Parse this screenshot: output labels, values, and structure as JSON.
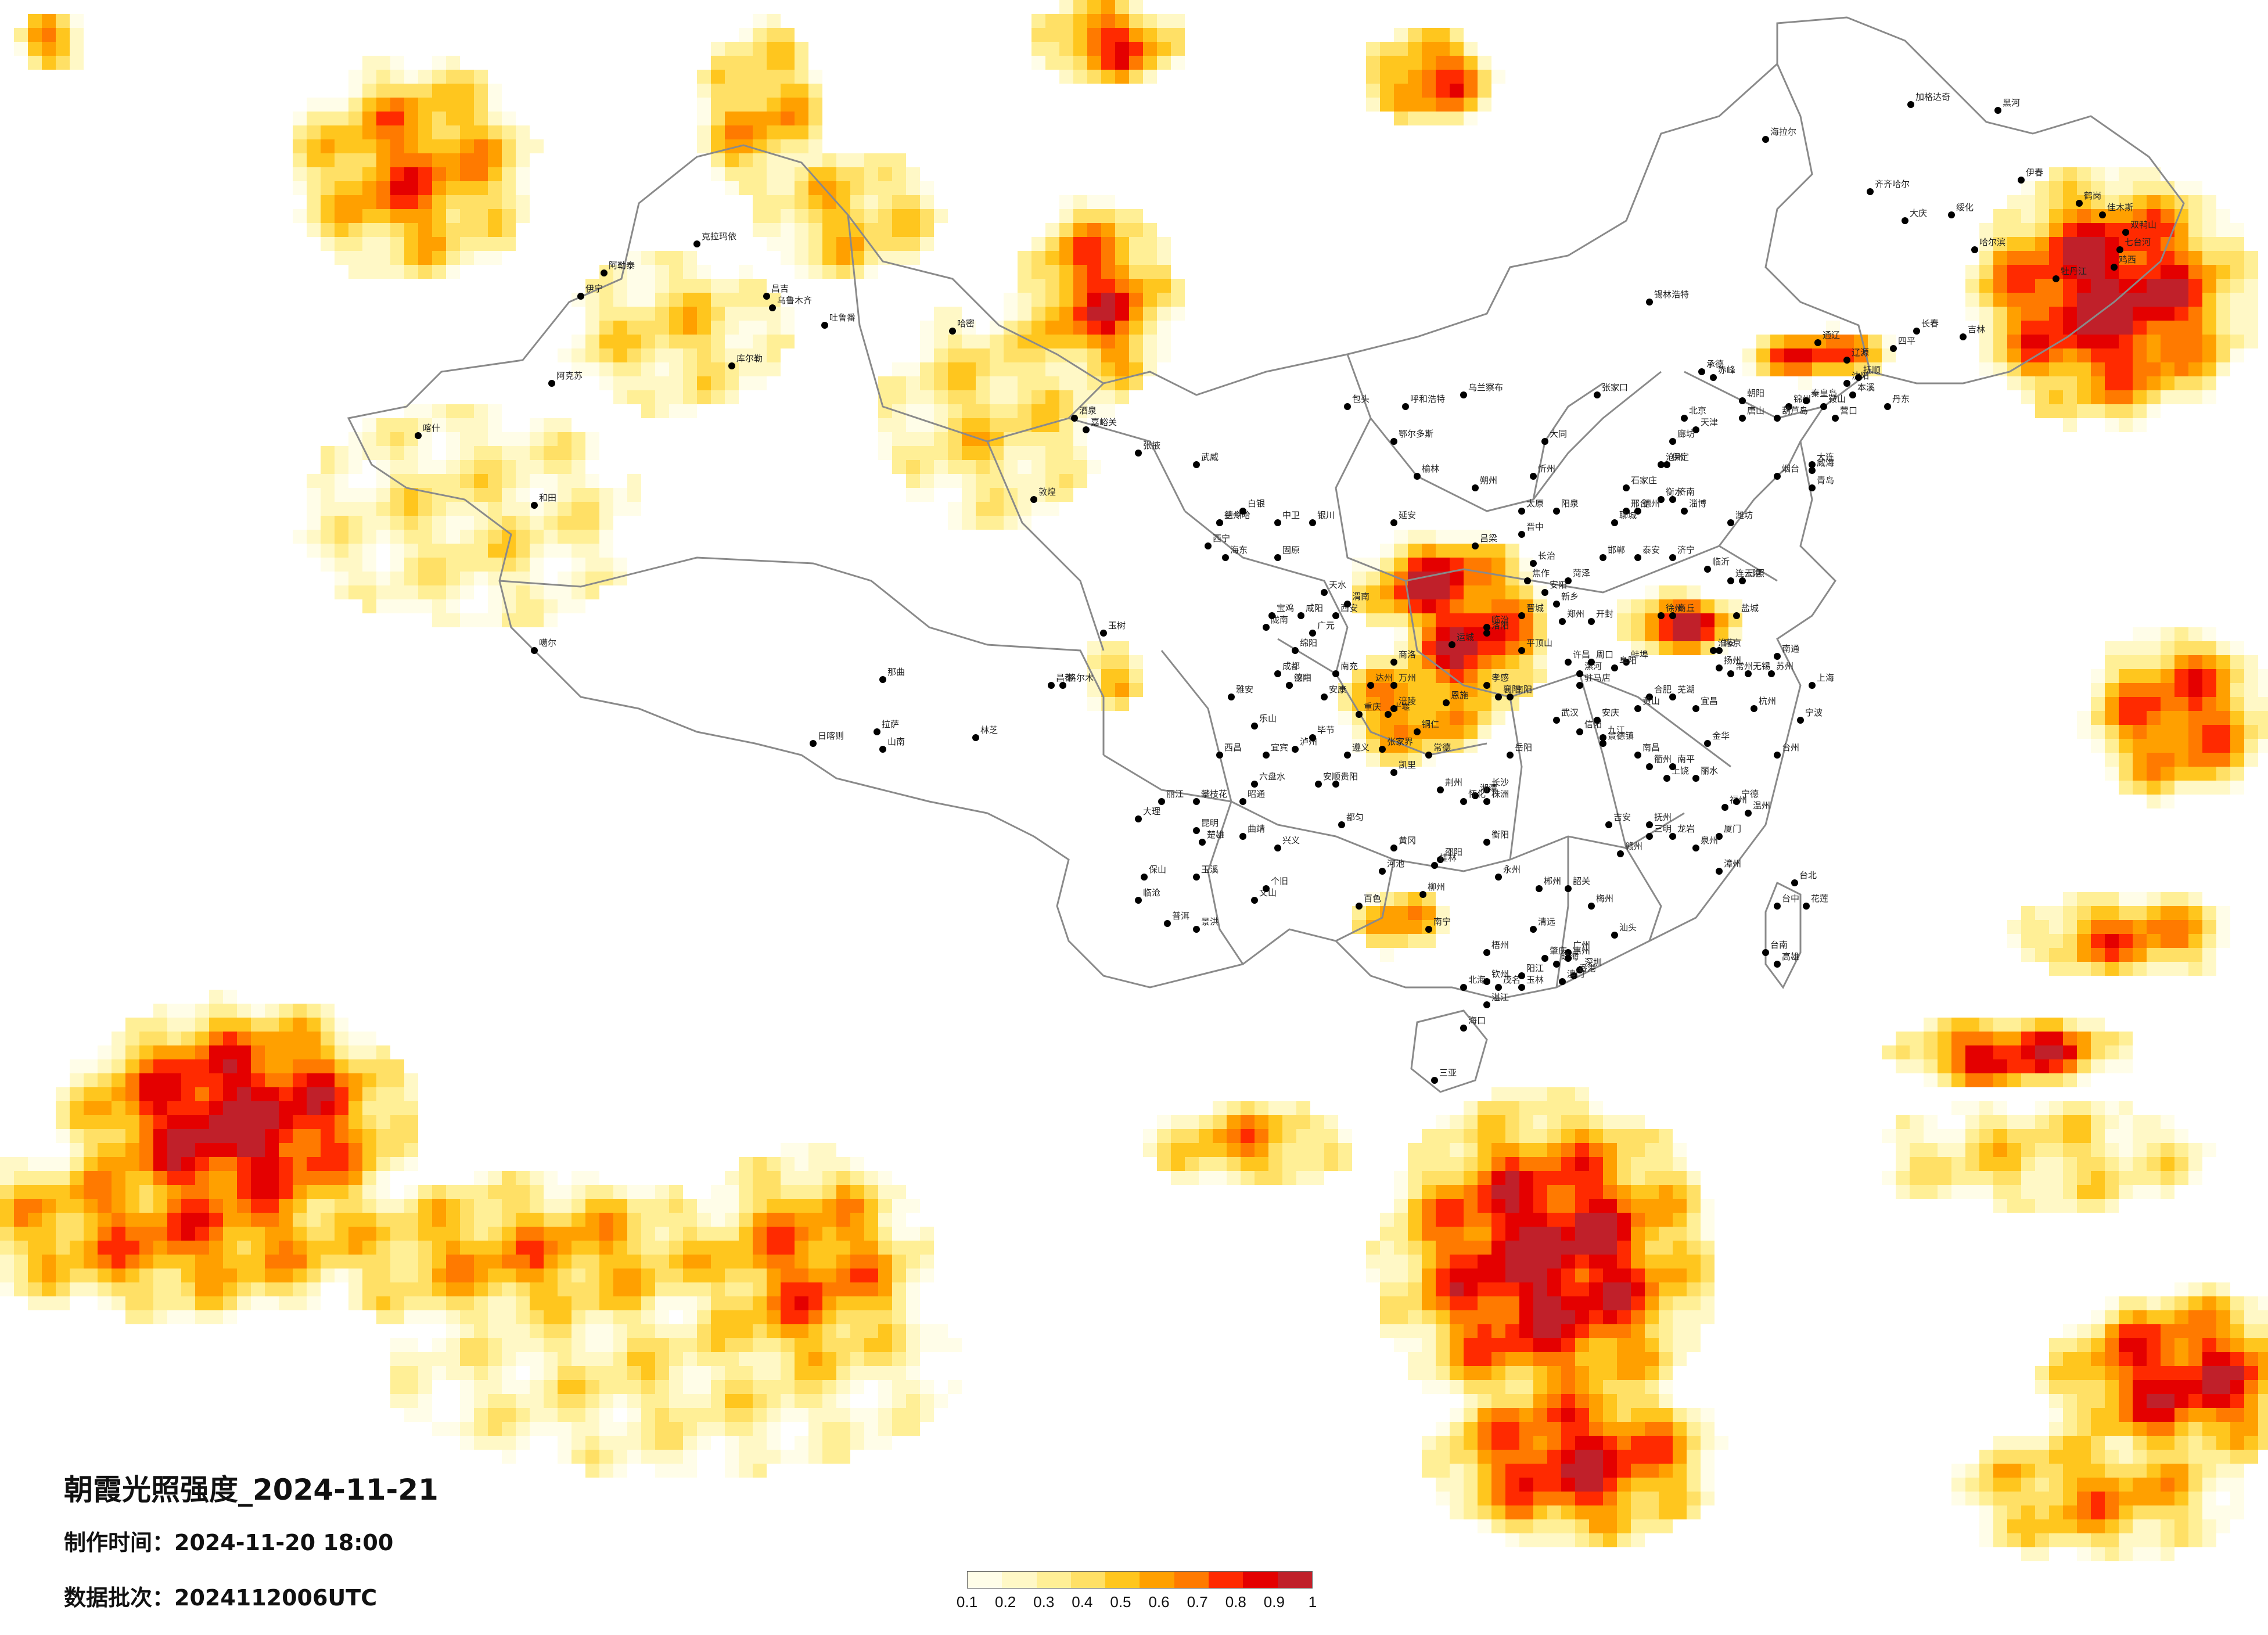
{
  "map": {
    "title": "朝霞光照强度_2024-11-21",
    "made_time_label": "制作时间：",
    "made_time_value": "2024-11-20 18:00",
    "batch_label": "数据批次：",
    "batch_value": "2024112006UTC"
  },
  "legend": {
    "ticks": [
      "0.1",
      "0.2",
      "0.3",
      "0.4",
      "0.5",
      "0.6",
      "0.7",
      "0.8",
      "0.9",
      "1"
    ],
    "colors": [
      "#fffde8",
      "#fff8c6",
      "#ffef96",
      "#ffe066",
      "#ffc61e",
      "#ffa000",
      "#ff7a00",
      "#ff2a00",
      "#e40000",
      "#c0202a"
    ]
  },
  "cities": [
    "阿勒泰",
    "克拉玛依",
    "伊宁",
    "昌吉",
    "乌鲁木齐",
    "吐鲁番",
    "哈密",
    "库尔勒",
    "阿克苏",
    "喀什",
    "和田",
    "噶尔",
    "拉萨",
    "日喀则",
    "山南",
    "林芝",
    "那曲",
    "昌都",
    "玉树",
    "西宁",
    "海东",
    "格尔木",
    "德令哈",
    "敦煌",
    "酒泉",
    "嘉峪关",
    "张掖",
    "武威",
    "兰州",
    "白银",
    "银川",
    "中卫",
    "固原",
    "天水",
    "陇南",
    "呼和浩特",
    "包头",
    "鄂尔多斯",
    "乌兰察布",
    "锡林浩特",
    "海拉尔",
    "加格达奇",
    "黑河",
    "齐齐哈尔",
    "大庆",
    "哈尔滨",
    "绥化",
    "伊春",
    "鹤岗",
    "佳木斯",
    "双鸭山",
    "七台河",
    "鸡西",
    "牡丹江",
    "长春",
    "吉林",
    "四平",
    "辽源",
    "沈阳",
    "抚顺",
    "本溪",
    "丹东",
    "大连",
    "营口",
    "鞍山",
    "锦州",
    "葫芦岛",
    "朝阳",
    "赤峰",
    "通辽",
    "北京",
    "天津",
    "承德",
    "张家口",
    "唐山",
    "秦皇岛",
    "保定",
    "石家庄",
    "衡水",
    "邢台",
    "邯郸",
    "沧州",
    "廊坊",
    "太原",
    "大同",
    "朔州",
    "忻州",
    "阳泉",
    "长治",
    "晋城",
    "临汾",
    "运城",
    "吕梁",
    "晋中",
    "济南",
    "青岛",
    "烟台",
    "威海",
    "潍坊",
    "淄博",
    "临沂",
    "济宁",
    "泰安",
    "聊城",
    "德州",
    "菏泽",
    "日照",
    "郑州",
    "开封",
    "洛阳",
    "平顶山",
    "安阳",
    "新乡",
    "焦作",
    "许昌",
    "漯河",
    "南阳",
    "信阳",
    "周口",
    "驻马店",
    "商丘",
    "西安",
    "宝鸡",
    "咸阳",
    "渭南",
    "延安",
    "榆林",
    "汉中",
    "安康",
    "商洛",
    "南京",
    "苏州",
    "无锡",
    "常州",
    "徐州",
    "连云港",
    "盐城",
    "扬州",
    "南通",
    "淮安",
    "上海",
    "杭州",
    "宁波",
    "温州",
    "金华",
    "衢州",
    "丽水",
    "台州",
    "合肥",
    "芜湖",
    "蚌埠",
    "阜阳",
    "安庆",
    "黄山",
    "武汉",
    "宜昌",
    "襄阳",
    "十堰",
    "荆州",
    "黄冈",
    "孝感",
    "恩施",
    "长沙",
    "株洲",
    "湘潭",
    "衡阳",
    "岳阳",
    "常德",
    "张家界",
    "怀化",
    "邵阳",
    "郴州",
    "永州",
    "南昌",
    "九江",
    "赣州",
    "吉安",
    "上饶",
    "抚州",
    "景德镇",
    "福州",
    "厦门",
    "泉州",
    "漳州",
    "龙岩",
    "三明",
    "南平",
    "宁德",
    "广州",
    "深圳",
    "珠海",
    "汕头",
    "湛江",
    "茂名",
    "肇庆",
    "惠州",
    "梅州",
    "韶关",
    "清远",
    "阳江",
    "南宁",
    "桂林",
    "柳州",
    "梧州",
    "北海",
    "钦州",
    "玉林",
    "百色",
    "河池",
    "海口",
    "三亚",
    "成都",
    "绵阳",
    "德阳",
    "乐山",
    "宜宾",
    "泸州",
    "南充",
    "达州",
    "广元",
    "雅安",
    "西昌",
    "攀枝花",
    "重庆",
    "万州",
    "涪陵",
    "贵阳",
    "遵义",
    "六盘水",
    "安顺",
    "凯里",
    "都匀",
    "兴义",
    "毕节",
    "铜仁",
    "昆明",
    "曲靖",
    "玉溪",
    "大理",
    "丽江",
    "保山",
    "临沧",
    "普洱",
    "景洪",
    "文山",
    "个旧",
    "楚雄",
    "昭通",
    "台北",
    "台中",
    "台南",
    "高雄",
    "花莲",
    "香港",
    "澳门"
  ]
}
